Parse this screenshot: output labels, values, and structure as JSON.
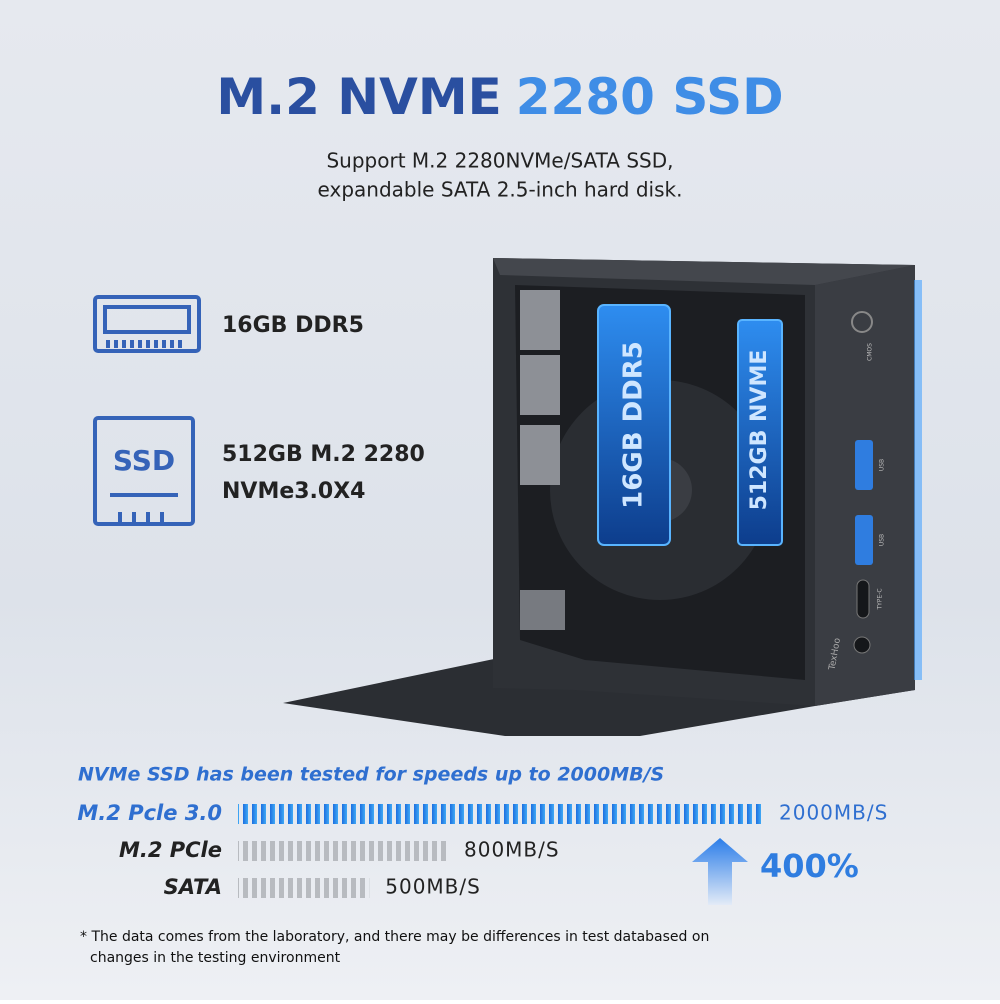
{
  "header": {
    "title_dark": "M.2 NVME",
    "title_light": "2280 SSD",
    "subtitle_lines": [
      "Support M.2 2280NVMe/SATA SSD,",
      "expandable SATA 2.5-inch hard disk."
    ]
  },
  "features": [
    {
      "lines": [
        "16GB DDR5"
      ]
    },
    {
      "icon_text": "SSD",
      "lines": [
        "512GB M.2 2280",
        "NVMe3.0X4"
      ]
    }
  ],
  "product": {
    "ram_label": "16GB DDR5",
    "ssd_label": "512GB NVME",
    "brand": "TexHoo",
    "ports": [
      "USB",
      "USB",
      "TYPE-C",
      "CMOS"
    ]
  },
  "speed": {
    "heading": "NVMe SSD has been tested for speeds up to 2000MB/S",
    "rows": [
      {
        "name": "M.2 Pcle 3.0",
        "value": 2000,
        "value_label": "2000MB/S",
        "highlight": true
      },
      {
        "name": "M.2 PCle",
        "value": 800,
        "value_label": "800MB/S",
        "highlight": false
      },
      {
        "name": "SATA",
        "value": 500,
        "value_label": "500MB/S",
        "highlight": false
      }
    ],
    "gain": "400%"
  },
  "footnote": [
    "* The data comes from the laboratory, and there may be differences in test databased on",
    "changes in the testing environment"
  ]
}
